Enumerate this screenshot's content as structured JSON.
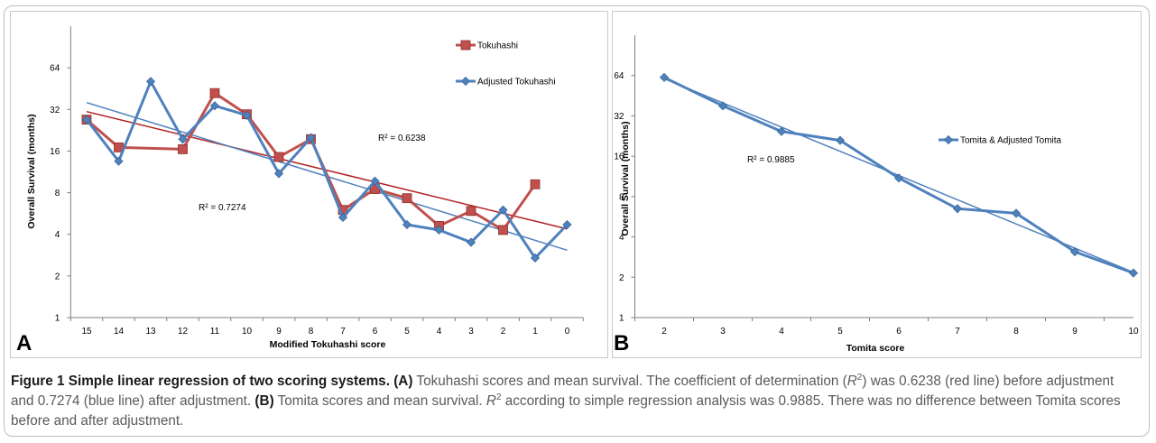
{
  "charts": {
    "colors": {
      "red": "#c0504d",
      "blue": "#4f81bd",
      "red_trend": "#b22222",
      "blue_trend": "#4f81bd"
    },
    "panel_a": {
      "letter": "A",
      "xlabel": "Modified Tokuhashi score",
      "ylabel": "Overall Survival (months)",
      "yticks": [
        "1",
        "2",
        "4",
        "8",
        "16",
        "32",
        "64"
      ],
      "r2_red_text": "R² = 0.6238",
      "r2_blue_text": "R² = 0.7274"
    },
    "panel_b": {
      "letter": "B",
      "xlabel": "Tomita score",
      "ylabel": "Overall Survival (months)",
      "yticks": [
        "1",
        "2",
        "4",
        "8",
        "16",
        "32",
        "64"
      ],
      "r2_text": "R² = 0.9885"
    }
  },
  "caption": {
    "title": "Figure 1 Simple linear regression of two scoring systems.",
    "a_label": "(A)",
    "a_text_1": " Tokuhashi scores and mean survival. The coefficient of determination (",
    "r": "R",
    "two": "2",
    "a_text_2": ") was 0.6238 (red line) before adjustment and 0.7274 (blue line) after adjustment. ",
    "b_label": "(B)",
    "b_text_1": " Tomita scores and mean survival. ",
    "b_text_2": " according to simple regression analysis was 0.9885. There was no difference between Tomita scores before and after adjustment."
  },
  "chart_data": [
    {
      "type": "line",
      "xlabel": "Modified Tokuhashi score",
      "ylabel": "Overall Survival (months)",
      "y_scale": "log2",
      "ylim": [
        1,
        128
      ],
      "categories": [
        "15",
        "14",
        "13",
        "12",
        "11",
        "10",
        "9",
        "8",
        "7",
        "6",
        "5",
        "4",
        "3",
        "2",
        "1",
        "0"
      ],
      "legend_position": "top-right",
      "gridlines": false,
      "series": [
        {
          "name": "Tokuhashi",
          "color": "#c0504d",
          "marker": "square",
          "values": [
            27,
            17,
            null,
            16.5,
            42,
            29.5,
            14.5,
            19.5,
            6,
            8.5,
            7.3,
            4.6,
            5.9,
            4.3,
            9.2,
            null
          ],
          "trendline_r2": 0.6238
        },
        {
          "name": "Adjusted Tokuhashi",
          "color": "#4f81bd",
          "marker": "diamond",
          "values": [
            27,
            13.5,
            51,
            19.5,
            34,
            29,
            11,
            20,
            5.3,
            9.7,
            4.7,
            4.3,
            3.5,
            6,
            2.7,
            4.7
          ],
          "trendline_r2": 0.7274
        }
      ]
    },
    {
      "type": "line",
      "xlabel": "Tomita score",
      "ylabel": "Overall Survival (months)",
      "y_scale": "log2",
      "ylim": [
        1,
        128
      ],
      "categories": [
        "2",
        "3",
        "4",
        "5",
        "6",
        "7",
        "8",
        "9",
        "10"
      ],
      "legend_position": "right",
      "gridlines": false,
      "series": [
        {
          "name": "Tomita & Adjusted Tomita",
          "color": "#4f81bd",
          "marker": "diamond",
          "values": [
            62,
            38,
            24.5,
            21,
            11,
            6.5,
            6,
            3.1,
            2.15
          ],
          "trendline_r2": 0.9885
        }
      ]
    }
  ]
}
